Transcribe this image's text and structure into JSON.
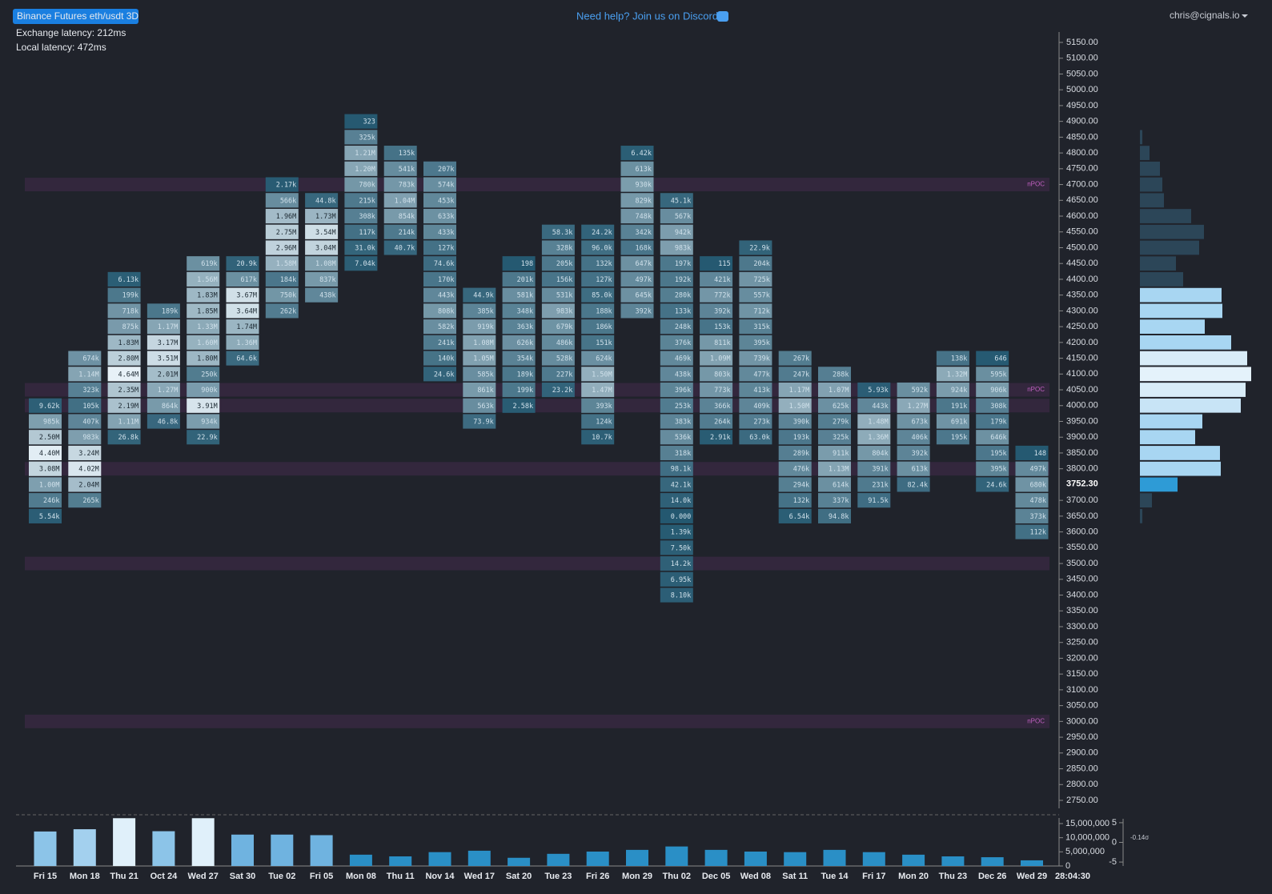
{
  "header": {
    "badge": "Binance Futures eth/usdt 3D",
    "exchange_latency": "Exchange latency: 212ms",
    "local_latency": "Local latency: 472ms",
    "help": "Need help? Join us on Discord",
    "user": "chris@cignals.io"
  },
  "chart_data": {
    "type": "footprint",
    "ylim": [
      2750,
      5150
    ],
    "yticks": [
      {
        "value": 5150,
        "label": "5150.00"
      },
      {
        "value": 5100,
        "label": "5100.00"
      },
      {
        "value": 5050,
        "label": "5050.00"
      },
      {
        "value": 5000,
        "label": "5000.00"
      },
      {
        "value": 4950,
        "label": "4950.00"
      },
      {
        "value": 4900,
        "label": "4900.00"
      },
      {
        "value": 4850,
        "label": "4850.00"
      },
      {
        "value": 4800,
        "label": "4800.00"
      },
      {
        "value": 4750,
        "label": "4750.00"
      },
      {
        "value": 4700,
        "label": "4700.00"
      },
      {
        "value": 4650,
        "label": "4650.00"
      },
      {
        "value": 4600,
        "label": "4600.00"
      },
      {
        "value": 4550,
        "label": "4550.00"
      },
      {
        "value": 4500,
        "label": "4500.00"
      },
      {
        "value": 4450,
        "label": "4450.00"
      },
      {
        "value": 4400,
        "label": "4400.00"
      },
      {
        "value": 4350,
        "label": "4350.00"
      },
      {
        "value": 4300,
        "label": "4300.00"
      },
      {
        "value": 4250,
        "label": "4250.00"
      },
      {
        "value": 4200,
        "label": "4200.00"
      },
      {
        "value": 4150,
        "label": "4150.00"
      },
      {
        "value": 4100,
        "label": "4100.00"
      },
      {
        "value": 4050,
        "label": "4050.00"
      },
      {
        "value": 4000,
        "label": "4000.00"
      },
      {
        "value": 3950,
        "label": "3950.00"
      },
      {
        "value": 3900,
        "label": "3900.00"
      },
      {
        "value": 3850,
        "label": "3850.00"
      },
      {
        "value": 3800,
        "label": "3800.00"
      },
      {
        "value": 3700,
        "label": "3700.00"
      },
      {
        "value": 3650,
        "label": "3650.00"
      },
      {
        "value": 3600,
        "label": "3600.00"
      },
      {
        "value": 3550,
        "label": "3550.00"
      },
      {
        "value": 3500,
        "label": "3500.00"
      },
      {
        "value": 3450,
        "label": "3450.00"
      },
      {
        "value": 3400,
        "label": "3400.00"
      },
      {
        "value": 3350,
        "label": "3350.00"
      },
      {
        "value": 3300,
        "label": "3300.00"
      },
      {
        "value": 3250,
        "label": "3250.00"
      },
      {
        "value": 3200,
        "label": "3200.00"
      },
      {
        "value": 3150,
        "label": "3150.00"
      },
      {
        "value": 3100,
        "label": "3100.00"
      },
      {
        "value": 3050,
        "label": "3050.00"
      },
      {
        "value": 3000,
        "label": "3000.00"
      },
      {
        "value": 2950,
        "label": "2950.00"
      },
      {
        "value": 2900,
        "label": "2900.00"
      },
      {
        "value": 2850,
        "label": "2850.00"
      },
      {
        "value": 2800,
        "label": "2800.00"
      },
      {
        "value": 2750,
        "label": "2750.00"
      }
    ],
    "last_price": {
      "value": 3752.3,
      "label": "3752.30"
    },
    "columns": [
      {
        "label": "Fri 15",
        "high": 4000,
        "cells": [
          "9.62k",
          "985k",
          "2.50M",
          "4.40M",
          "3.08M",
          "1.00M",
          "246k",
          "5.54k"
        ]
      },
      {
        "label": "Mon 18",
        "high": 4150,
        "cells": [
          "674k",
          "1.14M",
          "323k",
          "105k",
          "407k",
          "983k",
          "3.24M",
          "4.02M",
          "2.04M",
          "265k"
        ]
      },
      {
        "label": "Thu 21",
        "high": 4400,
        "cells": [
          "6.13k",
          "199k",
          "718k",
          "875k",
          "1.83M",
          "2.80M",
          "4.64M",
          "2.35M",
          "2.19M",
          "1.11M",
          "26.8k"
        ]
      },
      {
        "label": "Oct 24",
        "high": 4300,
        "cells": [
          "189k",
          "1.17M",
          "3.17M",
          "3.51M",
          "2.01M",
          "1.27M",
          "864k",
          "46.8k"
        ]
      },
      {
        "label": "Wed 27",
        "high": 4450,
        "cells": [
          "619k",
          "1.56M",
          "1.83M",
          "1.85M",
          "1.33M",
          "1.60M",
          "1.80M",
          "250k",
          "900k",
          "3.91M",
          "934k",
          "22.9k"
        ]
      },
      {
        "label": "Sat 30",
        "high": 4450,
        "cells": [
          "20.9k",
          "617k",
          "3.67M",
          "3.64M",
          "1.74M",
          "1.36M",
          "64.6k"
        ]
      },
      {
        "label": "Tue 02",
        "high": 4700,
        "cells": [
          "2.17k",
          "566k",
          "1.96M",
          "2.75M",
          "2.96M",
          "1.58M",
          "184k",
          "750k",
          "262k"
        ]
      },
      {
        "label": "Fri 05",
        "high": 4650,
        "cells": [
          "44.8k",
          "1.73M",
          "3.54M",
          "3.04M",
          "1.08M",
          "837k",
          "438k"
        ]
      },
      {
        "label": "Mon 08",
        "high": 4900,
        "cells": [
          "323",
          "325k",
          "1.21M",
          "1.20M",
          "780k",
          "215k",
          "308k",
          "117k",
          "31.0k",
          "7.04k"
        ]
      },
      {
        "label": "Thu 11",
        "high": 4800,
        "cells": [
          "135k",
          "541k",
          "783k",
          "1.04M",
          "854k",
          "214k",
          "40.7k"
        ]
      },
      {
        "label": "Nov 14",
        "high": 4750,
        "cells": [
          "207k",
          "574k",
          "453k",
          "633k",
          "433k",
          "127k",
          "74.6k",
          "170k",
          "443k",
          "808k",
          "582k",
          "241k",
          "140k",
          "24.6k"
        ]
      },
      {
        "label": "Wed 17",
        "high": 4350,
        "cells": [
          "44.9k",
          "385k",
          "919k",
          "1.08M",
          "1.05M",
          "585k",
          "861k",
          "563k",
          "73.9k"
        ]
      },
      {
        "label": "Sat 20",
        "high": 4450,
        "cells": [
          "198",
          "201k",
          "581k",
          "348k",
          "363k",
          "626k",
          "354k",
          "189k",
          "199k",
          "2.58k"
        ]
      },
      {
        "label": "Tue 23",
        "high": 4550,
        "cells": [
          "58.3k",
          "328k",
          "205k",
          "156k",
          "531k",
          "983k",
          "679k",
          "486k",
          "528k",
          "227k",
          "23.2k"
        ]
      },
      {
        "label": "Fri 26",
        "high": 4550,
        "cells": [
          "24.2k",
          "96.0k",
          "132k",
          "127k",
          "85.0k",
          "188k",
          "186k",
          "151k",
          "624k",
          "1.50M",
          "1.47M",
          "393k",
          "124k",
          "10.7k"
        ]
      },
      {
        "label": "Mon 29",
        "high": 4800,
        "cells": [
          "6.42k",
          "613k",
          "930k",
          "829k",
          "748k",
          "342k",
          "168k",
          "647k",
          "497k",
          "645k",
          "392k"
        ]
      },
      {
        "label": "Thu 02",
        "high": 4650,
        "cells": [
          "45.1k",
          "567k",
          "942k",
          "983k",
          "197k",
          "192k",
          "280k",
          "133k",
          "248k",
          "376k",
          "469k",
          "438k",
          "396k",
          "253k",
          "383k",
          "536k",
          "318k",
          "98.1k",
          "42.1k",
          "14.0k",
          "0.000",
          "1.39k",
          "7.50k",
          "14.2k",
          "6.95k",
          "8.10k"
        ]
      },
      {
        "label": "Dec 05",
        "high": 4450,
        "cells": [
          "115",
          "421k",
          "772k",
          "392k",
          "153k",
          "811k",
          "1.09M",
          "803k",
          "773k",
          "366k",
          "264k",
          "2.91k"
        ]
      },
      {
        "label": "Wed 08",
        "high": 4500,
        "cells": [
          "22.9k",
          "204k",
          "725k",
          "557k",
          "712k",
          "315k",
          "395k",
          "739k",
          "477k",
          "413k",
          "409k",
          "273k",
          "63.0k"
        ]
      },
      {
        "label": "Sat 11",
        "high": 4150,
        "cells": [
          "267k",
          "247k",
          "1.17M",
          "1.50M",
          "390k",
          "193k",
          "289k",
          "476k",
          "294k",
          "132k",
          "6.54k"
        ]
      },
      {
        "label": "Tue 14",
        "high": 4100,
        "cells": [
          "288k",
          "1.07M",
          "625k",
          "279k",
          "325k",
          "911k",
          "1.13M",
          "614k",
          "337k",
          "94.8k"
        ]
      },
      {
        "label": "Fri 17",
        "high": 4050,
        "cells": [
          "5.93k",
          "443k",
          "1.48M",
          "1.36M",
          "804k",
          "391k",
          "231k",
          "91.5k"
        ]
      },
      {
        "label": "Mon 20",
        "high": 4050,
        "cells": [
          "592k",
          "1.27M",
          "673k",
          "406k",
          "392k",
          "613k",
          "82.4k"
        ]
      },
      {
        "label": "Thu 23",
        "high": 4150,
        "cells": [
          "138k",
          "1.32M",
          "924k",
          "191k",
          "691k",
          "195k"
        ]
      },
      {
        "label": "Dec 26",
        "high": 4150,
        "cells": [
          "646",
          "595k",
          "906k",
          "308k",
          "179k",
          "646k",
          "195k",
          "395k",
          "24.6k"
        ]
      },
      {
        "label": "Wed 29",
        "high": 3850,
        "cells": [
          "148",
          "497k",
          "680k",
          "478k",
          "373k",
          "112k"
        ]
      }
    ],
    "npoc": [
      {
        "price": 4700,
        "label": "nPOC"
      },
      {
        "price": 4050,
        "label": "nPOC"
      },
      {
        "price": 4000
      },
      {
        "price": 3800
      },
      {
        "price": 3500
      },
      {
        "price": 3000,
        "label": "nPOC"
      }
    ],
    "profile": {
      "prices": [
        4850,
        4800,
        4750,
        4700,
        4650,
        4600,
        4550,
        4500,
        4450,
        4400,
        4350,
        4300,
        4250,
        4200,
        4150,
        4100,
        4050,
        4000,
        3950,
        3900,
        3850,
        3800,
        3750,
        3700,
        3650
      ],
      "values": [
        3,
        12,
        25,
        28,
        30,
        64,
        80,
        74,
        45,
        54,
        102,
        103,
        81,
        114,
        134,
        139,
        132,
        126,
        78,
        69,
        100,
        101,
        47,
        15,
        3
      ],
      "colors": [
        "#2c4658",
        "#2c4658",
        "#2c4658",
        "#2c4658",
        "#2c4658",
        "#2c4658",
        "#2c4658",
        "#2c4658",
        "#2c4658",
        "#2c4658",
        "#a8d6f2",
        "#a8d6f2",
        "#a8d6f2",
        "#a8d6f2",
        "#d8ecf8",
        "#e4f2fb",
        "#d8ecf8",
        "#c8e4f6",
        "#a8d6f2",
        "#a8d6f2",
        "#a8d6f2",
        "#a8d6f2",
        "#2e9bd6",
        "#2c4658",
        "#2c4658"
      ]
    },
    "volume": {
      "values": [
        12200000,
        13000000,
        16900000,
        12300000,
        16900000,
        11100000,
        11100000,
        10900000,
        4000000,
        3400000,
        4900000,
        5400000,
        2900000,
        4300000,
        5100000,
        5700000,
        6900000,
        5700000,
        5100000,
        4900000,
        5700000,
        4900000,
        4000000,
        3400000,
        3100000,
        2000000
      ],
      "colors": [
        "#8cc4e8",
        "#a3d0ee",
        "#e0f0fa",
        "#8cc4e8",
        "#e0f0fa",
        "#6fb3e0",
        "#6fb3e0",
        "#6fb3e0",
        "#2a8fc6",
        "#2a8fc6",
        "#2a8fc6",
        "#2a8fc6",
        "#2a8fc6",
        "#2a8fc6",
        "#2a8fc6",
        "#2a8fc6",
        "#2a8fc6",
        "#2a8fc6",
        "#2a8fc6",
        "#2a8fc6",
        "#2a8fc6",
        "#2a8fc6",
        "#2a8fc6",
        "#2a8fc6",
        "#2a8fc6",
        "#2a8fc6"
      ],
      "ylim": [
        0,
        18000000
      ],
      "yticks": [
        {
          "value": 15000000,
          "label": "15,000,000"
        },
        {
          "value": 10000000,
          "label": "10,000,000"
        },
        {
          "value": 5000000,
          "label": "5,000,000"
        },
        0
      ]
    },
    "delta": {
      "label": "-0.14σ",
      "ylim": [
        -6,
        6
      ],
      "yticks": [
        5,
        0,
        -5
      ]
    },
    "countdown": "28:04:30"
  }
}
